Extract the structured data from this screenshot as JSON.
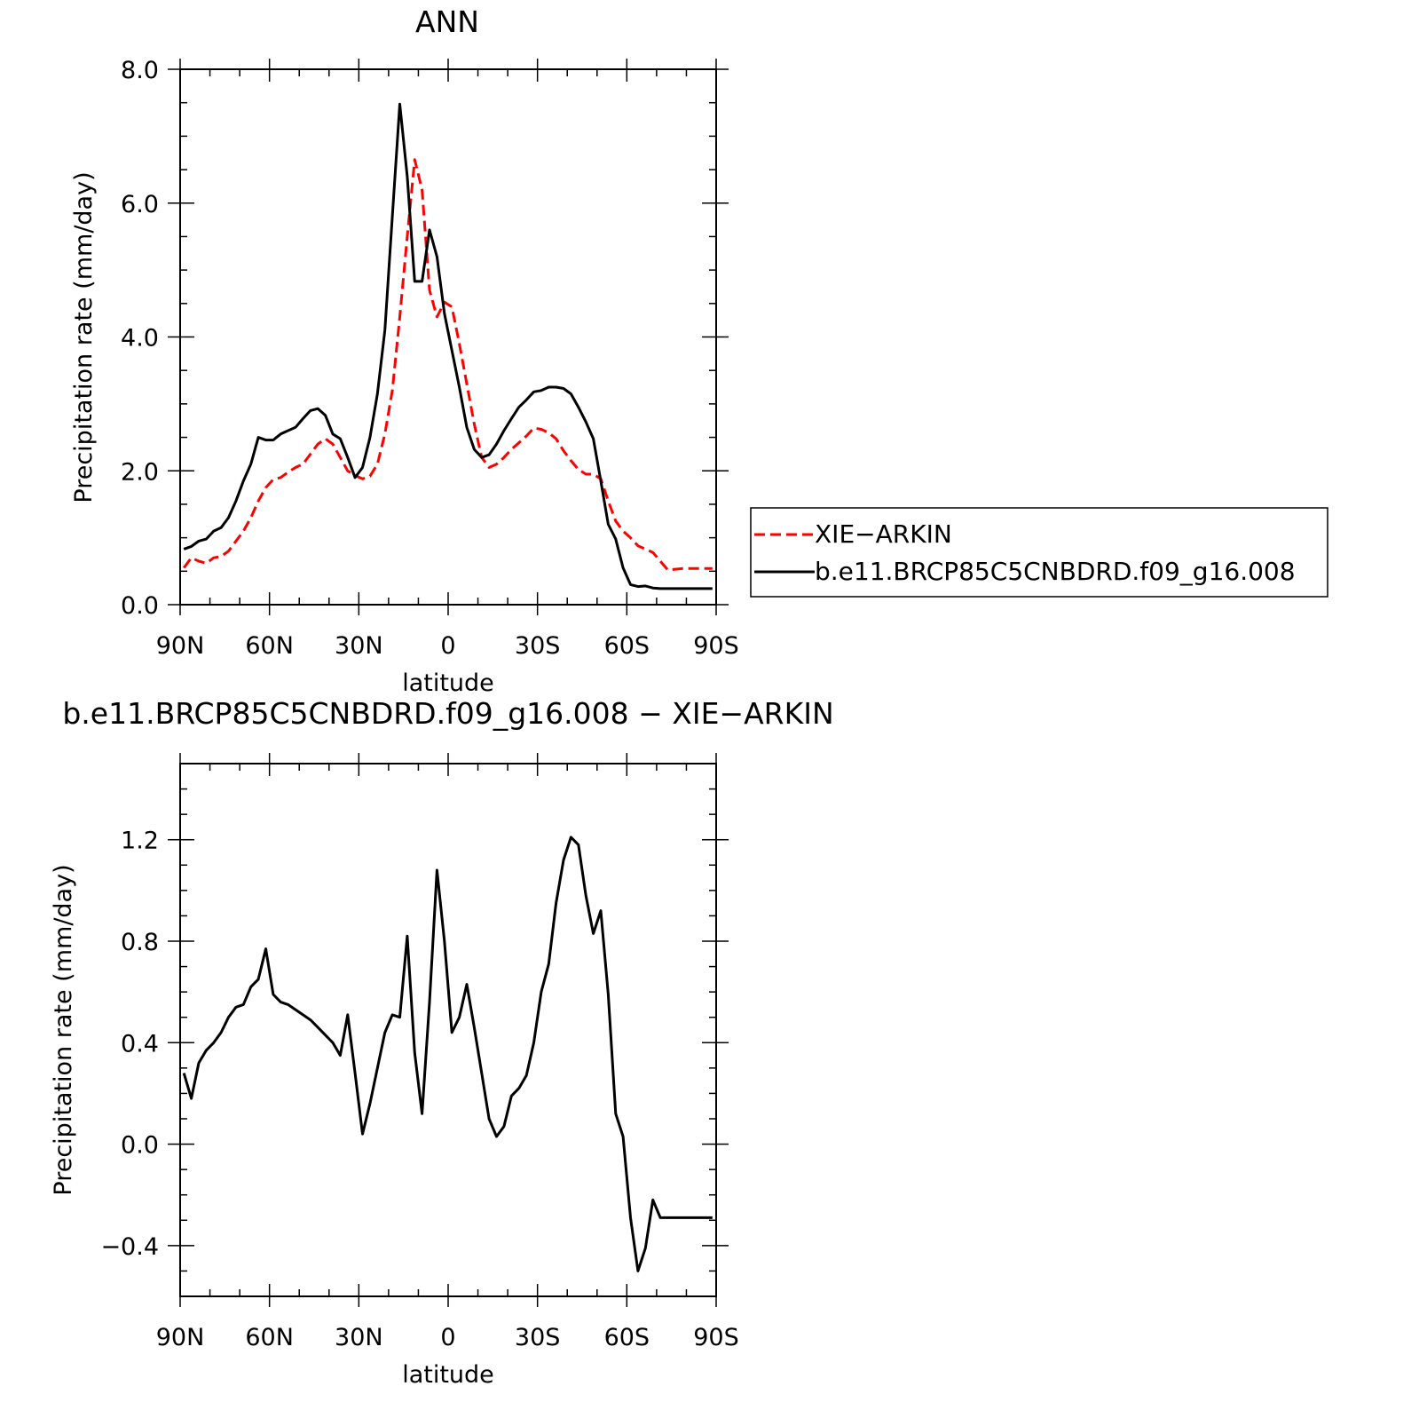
{
  "chart_data": [
    {
      "type": "line",
      "title": "ANN",
      "xlabel": "latitude",
      "ylabel": "Precipitation rate (mm/day)",
      "xlim": [
        90,
        -90
      ],
      "ylim": [
        0,
        8
      ],
      "xticks": [
        {
          "v": 90,
          "label": "90N"
        },
        {
          "v": 60,
          "label": "60N"
        },
        {
          "v": 30,
          "label": "30N"
        },
        {
          "v": 0,
          "label": "0"
        },
        {
          "v": -30,
          "label": "30S"
        },
        {
          "v": -60,
          "label": "60S"
        },
        {
          "v": -90,
          "label": "90S"
        }
      ],
      "yticks": [
        {
          "v": 0,
          "label": "0.0"
        },
        {
          "v": 2,
          "label": "2.0"
        },
        {
          "v": 4,
          "label": "4.0"
        },
        {
          "v": 6,
          "label": "6.0"
        },
        {
          "v": 8,
          "label": "8.0"
        }
      ],
      "legend": {
        "position": "right"
      },
      "series": [
        {
          "name": "XIE−ARKIN",
          "color": "#ff0000",
          "dash": true,
          "x": [
            88.75,
            86.25,
            83.75,
            81.25,
            78.75,
            76.25,
            73.75,
            71.25,
            68.75,
            66.25,
            63.75,
            61.25,
            58.75,
            56.25,
            53.75,
            51.25,
            48.75,
            46.25,
            43.75,
            41.25,
            38.75,
            36.25,
            33.75,
            31.25,
            28.75,
            26.25,
            23.75,
            21.25,
            18.75,
            16.25,
            13.75,
            11.25,
            8.75,
            6.25,
            3.75,
            1.25,
            -1.25,
            -3.75,
            -6.25,
            -8.75,
            -11.25,
            -13.75,
            -16.25,
            -18.75,
            -21.25,
            -23.75,
            -26.25,
            -28.75,
            -31.25,
            -33.75,
            -36.25,
            -38.75,
            -41.25,
            -43.75,
            -46.25,
            -48.75,
            -51.25,
            -53.75,
            -56.25,
            -58.75,
            -61.25,
            -63.75,
            -66.25,
            -68.75,
            -71.25,
            -73.75,
            -76.25,
            -78.75,
            -81.25,
            -83.75,
            -86.25,
            -88.75
          ],
          "y": [
            0.55,
            0.7,
            0.65,
            0.62,
            0.7,
            0.72,
            0.8,
            0.95,
            1.1,
            1.3,
            1.55,
            1.75,
            1.87,
            1.9,
            1.98,
            2.05,
            2.1,
            2.25,
            2.4,
            2.48,
            2.4,
            2.2,
            2.0,
            1.93,
            1.88,
            1.92,
            2.1,
            2.55,
            3.2,
            4.3,
            5.5,
            6.65,
            6.2,
            4.7,
            4.3,
            4.52,
            4.45,
            3.9,
            3.3,
            2.7,
            2.2,
            2.05,
            2.1,
            2.2,
            2.32,
            2.42,
            2.52,
            2.64,
            2.62,
            2.57,
            2.48,
            2.3,
            2.15,
            2.02,
            1.95,
            1.95,
            1.88,
            1.55,
            1.25,
            1.1,
            1.0,
            0.88,
            0.83,
            0.78,
            0.65,
            0.52,
            0.53,
            0.54,
            0.54,
            0.54,
            0.54,
            0.54
          ]
        },
        {
          "name": "b.e11.BRCP85C5CNBDRD.f09_g16.008",
          "color": "#000000",
          "dash": false,
          "x": [
            88.75,
            86.25,
            83.75,
            81.25,
            78.75,
            76.25,
            73.75,
            71.25,
            68.75,
            66.25,
            63.75,
            61.25,
            58.75,
            56.25,
            53.75,
            51.25,
            48.75,
            46.25,
            43.75,
            41.25,
            38.75,
            36.25,
            33.75,
            31.25,
            28.75,
            26.25,
            23.75,
            21.25,
            18.75,
            16.25,
            13.75,
            11.25,
            8.75,
            6.25,
            3.75,
            1.25,
            -1.25,
            -3.75,
            -6.25,
            -8.75,
            -11.25,
            -13.75,
            -16.25,
            -18.75,
            -21.25,
            -23.75,
            -26.25,
            -28.75,
            -31.25,
            -33.75,
            -36.25,
            -38.75,
            -41.25,
            -43.75,
            -46.25,
            -48.75,
            -51.25,
            -53.75,
            -56.25,
            -58.75,
            -61.25,
            -63.75,
            -66.25,
            -68.75,
            -71.25,
            -73.75,
            -76.25,
            -78.75,
            -81.25,
            -83.75,
            -86.25,
            -88.75
          ],
          "y": [
            0.83,
            0.87,
            0.95,
            0.98,
            1.1,
            1.15,
            1.3,
            1.55,
            1.85,
            2.1,
            2.5,
            2.46,
            2.46,
            2.55,
            2.6,
            2.65,
            2.78,
            2.9,
            2.93,
            2.83,
            2.55,
            2.48,
            2.2,
            1.9,
            2.05,
            2.5,
            3.15,
            4.1,
            5.8,
            7.48,
            6.4,
            4.83,
            4.83,
            5.6,
            5.2,
            4.35,
            3.8,
            3.25,
            2.65,
            2.32,
            2.2,
            2.24,
            2.4,
            2.6,
            2.78,
            2.95,
            3.06,
            3.18,
            3.2,
            3.25,
            3.25,
            3.23,
            3.15,
            2.95,
            2.73,
            2.48,
            1.85,
            1.2,
            0.98,
            0.55,
            0.3,
            0.27,
            0.28,
            0.25,
            0.24,
            0.24,
            0.24,
            0.24,
            0.24,
            0.24,
            0.24,
            0.24
          ]
        }
      ]
    },
    {
      "type": "line",
      "title": "b.e11.BRCP85C5CNBDRD.f09_g16.008 − XIE−ARKIN",
      "xlabel": "latitude",
      "ylabel": "Precipitation rate (mm/day)",
      "xlim": [
        90,
        -90
      ],
      "ylim": [
        -0.6,
        1.5
      ],
      "xticks": [
        {
          "v": 90,
          "label": "90N"
        },
        {
          "v": 60,
          "label": "60N"
        },
        {
          "v": 30,
          "label": "30N"
        },
        {
          "v": 0,
          "label": "0"
        },
        {
          "v": -30,
          "label": "30S"
        },
        {
          "v": -60,
          "label": "60S"
        },
        {
          "v": -90,
          "label": "90S"
        }
      ],
      "yticks": [
        {
          "v": -0.4,
          "label": "−0.4"
        },
        {
          "v": 0,
          "label": "0.0"
        },
        {
          "v": 0.4,
          "label": "0.4"
        },
        {
          "v": 0.8,
          "label": "0.8"
        },
        {
          "v": 1.2,
          "label": "1.2"
        }
      ],
      "series": [
        {
          "color": "#000000",
          "dash": false,
          "x": [
            88.75,
            86.25,
            83.75,
            81.25,
            78.75,
            76.25,
            73.75,
            71.25,
            68.75,
            66.25,
            63.75,
            61.25,
            58.75,
            56.25,
            53.75,
            51.25,
            48.75,
            46.25,
            43.75,
            41.25,
            38.75,
            36.25,
            33.75,
            31.25,
            28.75,
            26.25,
            23.75,
            21.25,
            18.75,
            16.25,
            13.75,
            11.25,
            8.75,
            6.25,
            3.75,
            1.25,
            -1.25,
            -3.75,
            -6.25,
            -8.75,
            -11.25,
            -13.75,
            -16.25,
            -18.75,
            -21.25,
            -23.75,
            -26.25,
            -28.75,
            -31.25,
            -33.75,
            -36.25,
            -38.75,
            -41.25,
            -43.75,
            -46.25,
            -48.75,
            -51.25,
            -53.75,
            -56.25,
            -58.75,
            -61.25,
            -63.75,
            -66.25,
            -68.75,
            -71.25,
            -73.75,
            -76.25,
            -78.75,
            -81.25,
            -83.75,
            -86.25,
            -88.75
          ],
          "y": [
            0.28,
            0.18,
            0.32,
            0.37,
            0.4,
            0.44,
            0.5,
            0.54,
            0.55,
            0.62,
            0.65,
            0.77,
            0.59,
            0.56,
            0.55,
            0.53,
            0.51,
            0.49,
            0.46,
            0.43,
            0.4,
            0.35,
            0.51,
            0.28,
            0.04,
            0.16,
            0.3,
            0.44,
            0.51,
            0.5,
            0.82,
            0.36,
            0.12,
            0.56,
            1.08,
            0.8,
            0.44,
            0.5,
            0.63,
            0.46,
            0.28,
            0.1,
            0.03,
            0.07,
            0.19,
            0.22,
            0.27,
            0.4,
            0.6,
            0.71,
            0.95,
            1.12,
            1.21,
            1.18,
            0.98,
            0.83,
            0.92,
            0.59,
            0.12,
            0.03,
            -0.29,
            -0.5,
            -0.41,
            -0.22,
            -0.29,
            -0.29,
            -0.29,
            -0.29,
            -0.29,
            -0.29,
            -0.29,
            -0.29
          ]
        }
      ]
    }
  ]
}
